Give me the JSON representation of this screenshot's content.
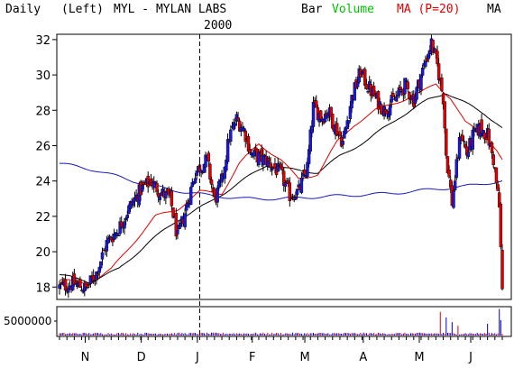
{
  "header": {
    "period": "Daily",
    "scale": "(Left)",
    "symbol_line": "MYL - MYLAN LABS",
    "bar_label": "Bar",
    "volume_label": "Volume",
    "ma_label": "MA (P=20)",
    "ma2_label": "MA",
    "year_marker": "2000"
  },
  "colors": {
    "up_bar": "#1818e0",
    "down_bar": "#e00000",
    "ma20": "#e00000",
    "ma50": "#000000",
    "ma200": "#1818c0",
    "volume_text": "#00c000",
    "ma_text": "#e00000",
    "volume_bar": "#0000c0"
  },
  "chart_data": [
    {
      "type": "candlestick",
      "title": "MYL - MYLAN LABS",
      "ylim": [
        17.3,
        32.3
      ],
      "yticks": [
        18,
        20,
        22,
        24,
        26,
        28,
        30,
        32
      ],
      "x_month_labels": [
        {
          "label": "N",
          "index": 22
        },
        {
          "label": "D",
          "index": 70
        },
        {
          "label": "J",
          "index": 118
        },
        {
          "label": "F",
          "index": 165
        },
        {
          "label": "M",
          "index": 210
        },
        {
          "label": "A",
          "index": 260
        },
        {
          "label": "M",
          "index": 308
        },
        {
          "label": "J",
          "index": 352
        }
      ],
      "year_divider_index": 120,
      "n_days": 380,
      "price_anchors": [
        [
          0,
          18.0
        ],
        [
          10,
          18.2
        ],
        [
          18,
          17.9
        ],
        [
          25,
          18.8
        ],
        [
          32,
          20.5
        ],
        [
          40,
          21.3
        ],
        [
          48,
          22.6
        ],
        [
          55,
          23.5
        ],
        [
          62,
          24.0
        ],
        [
          68,
          23.4
        ],
        [
          75,
          23.0
        ],
        [
          80,
          20.8
        ],
        [
          85,
          22.2
        ],
        [
          92,
          24.5
        ],
        [
          100,
          25.2
        ],
        [
          105,
          22.9
        ],
        [
          110,
          24.0
        ],
        [
          115,
          26.5
        ],
        [
          120,
          27.5
        ],
        [
          125,
          26.9
        ],
        [
          130,
          25.5
        ],
        [
          140,
          25.2
        ],
        [
          150,
          24.4
        ],
        [
          156,
          23.2
        ],
        [
          162,
          23.4
        ],
        [
          168,
          24.8
        ],
        [
          172,
          28.2
        ],
        [
          178,
          27.6
        ],
        [
          182,
          28.0
        ],
        [
          186,
          27.2
        ],
        [
          192,
          26.2
        ],
        [
          198,
          28.7
        ],
        [
          204,
          30.2
        ],
        [
          208,
          29.5
        ],
        [
          214,
          28.7
        ],
        [
          220,
          28.0
        ],
        [
          228,
          28.7
        ],
        [
          234,
          29.4
        ],
        [
          240,
          28.6
        ],
        [
          248,
          30.8
        ],
        [
          252,
          31.8
        ],
        [
          256,
          30.5
        ],
        [
          260,
          28.7
        ],
        [
          262,
          25.5
        ],
        [
          266,
          22.8
        ],
        [
          272,
          26.8
        ],
        [
          276,
          25.5
        ],
        [
          280,
          26.5
        ],
        [
          285,
          27.0
        ],
        [
          290,
          26.6
        ],
        [
          294,
          25.2
        ],
        [
          298,
          22.5
        ],
        [
          300,
          17.8
        ]
      ],
      "ma20_anchors": [
        [
          0,
          18.4
        ],
        [
          20,
          18.2
        ],
        [
          35,
          19.0
        ],
        [
          50,
          20.5
        ],
        [
          65,
          22.0
        ],
        [
          80,
          22.4
        ],
        [
          95,
          23.4
        ],
        [
          110,
          23.3
        ],
        [
          122,
          25.0
        ],
        [
          135,
          26.1
        ],
        [
          150,
          25.2
        ],
        [
          162,
          24.1
        ],
        [
          175,
          24.4
        ],
        [
          188,
          26.2
        ],
        [
          200,
          27.2
        ],
        [
          214,
          28.0
        ],
        [
          230,
          28.5
        ],
        [
          245,
          29.0
        ],
        [
          255,
          29.5
        ],
        [
          265,
          28.7
        ],
        [
          275,
          27.3
        ],
        [
          288,
          26.6
        ],
        [
          296,
          25.8
        ],
        [
          300,
          25.2
        ]
      ],
      "ma50_anchors": [
        [
          0,
          18.7
        ],
        [
          20,
          18.3
        ],
        [
          40,
          19.0
        ],
        [
          60,
          20.5
        ],
        [
          80,
          21.8
        ],
        [
          100,
          22.7
        ],
        [
          120,
          23.8
        ],
        [
          140,
          24.9
        ],
        [
          160,
          24.6
        ],
        [
          175,
          24.5
        ],
        [
          190,
          25.4
        ],
        [
          210,
          26.4
        ],
        [
          230,
          27.6
        ],
        [
          250,
          28.6
        ],
        [
          262,
          29.0
        ],
        [
          275,
          28.4
        ],
        [
          288,
          27.8
        ],
        [
          296,
          27.3
        ],
        [
          300,
          27.0
        ]
      ],
      "ma200_anchors": [
        [
          0,
          25.0
        ],
        [
          25,
          24.6
        ],
        [
          50,
          24.0
        ],
        [
          75,
          23.5
        ],
        [
          100,
          23.2
        ],
        [
          125,
          23.0
        ],
        [
          150,
          23.0
        ],
        [
          175,
          23.1
        ],
        [
          200,
          23.2
        ],
        [
          225,
          23.3
        ],
        [
          250,
          23.5
        ],
        [
          275,
          23.7
        ],
        [
          300,
          24.0
        ]
      ]
    },
    {
      "type": "bar",
      "title": "",
      "ylabel": "",
      "ytick_label": "5000000",
      "ytick_value": 5000000,
      "ylim": [
        0,
        10000000
      ],
      "series": [
        {
          "values_description": "daily volume per bar"
        }
      ],
      "spikes": [
        {
          "index": 258,
          "value": 8500000
        },
        {
          "index": 262,
          "value": 6500000
        },
        {
          "index": 266,
          "value": 4800000
        },
        {
          "index": 270,
          "value": 3500000
        },
        {
          "index": 290,
          "value": 4200000
        },
        {
          "index": 298,
          "value": 9500000
        },
        {
          "index": 299,
          "value": 5500000
        }
      ],
      "base_volume": 700000
    }
  ]
}
